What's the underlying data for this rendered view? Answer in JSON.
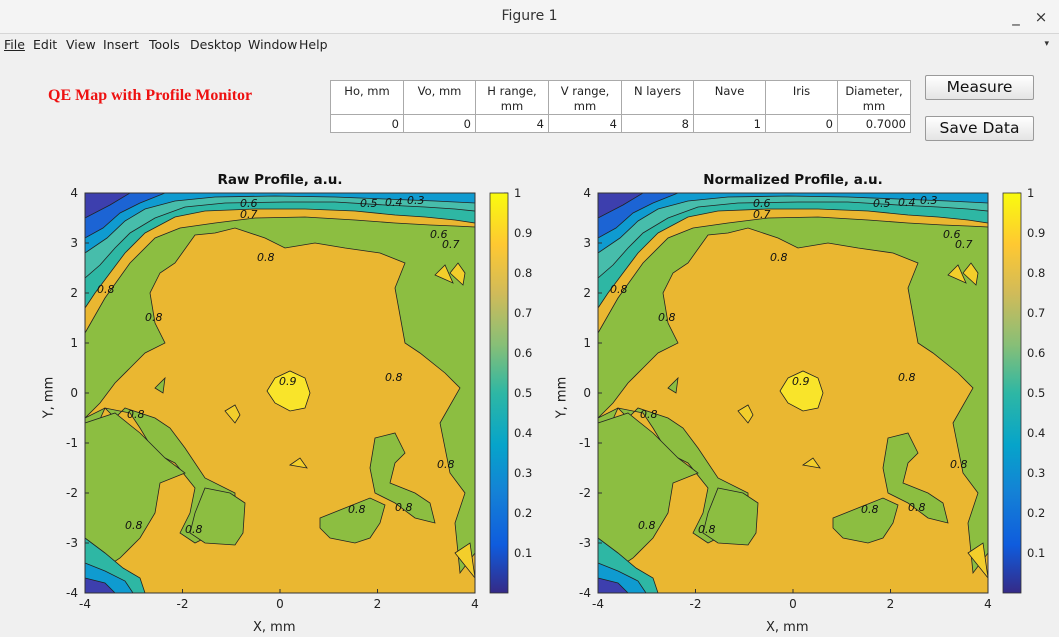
{
  "window": {
    "title": "Figure 1",
    "minimize_glyph": "_",
    "close_glyph": "×"
  },
  "menu": [
    {
      "label": "File",
      "icon": "none"
    },
    {
      "label": "Edit"
    },
    {
      "label": "View"
    },
    {
      "label": "Insert"
    },
    {
      "label": "Tools"
    },
    {
      "label": "Desktop"
    },
    {
      "label": "Window"
    },
    {
      "label": "Help"
    }
  ],
  "app_title": "QE Map with Profile Monitor",
  "app_title_color": "#ee1111",
  "params_table": {
    "headers": [
      "Ho, mm",
      "Vo, mm",
      "H range, mm",
      "V range, mm",
      "N layers",
      "Nave",
      "Iris",
      "Diameter, mm"
    ],
    "values": [
      "0",
      "0",
      "4",
      "4",
      "8",
      "1",
      "0",
      "0.7000"
    ]
  },
  "buttons": {
    "measure": "Measure",
    "save": "Save Data"
  },
  "colors": {
    "parula_low": "#3e26a8",
    "parula_mid_green": "#8cbe41",
    "parula_yellow": "#eab731",
    "parula_high": "#f9fb15"
  },
  "chart_data": [
    {
      "type": "contour",
      "title": "Raw Profile, a.u.",
      "xlabel": "X, mm",
      "ylabel": "Y, mm",
      "xlim": [
        -4,
        4
      ],
      "ylim": [
        -4,
        4
      ],
      "xticks": [
        -4,
        -2,
        0,
        2,
        4
      ],
      "yticks": [
        -4,
        -3,
        -2,
        -1,
        0,
        1,
        2,
        3,
        4
      ],
      "colorbar": {
        "range": [
          0,
          1
        ],
        "ticks": [
          0.1,
          0.2,
          0.3,
          0.4,
          0.5,
          0.6,
          0.7,
          0.8,
          0.9,
          1
        ]
      },
      "contour_labels": [
        "0.3",
        "0.4",
        "0.5",
        "0.6",
        "0.7",
        "0.6",
        "0.7",
        "0.8",
        "0.8",
        "0.8",
        "0.9",
        "0.8",
        "0.8",
        "0.8",
        "0.8",
        "0.8",
        "0.8",
        "0.8"
      ]
    },
    {
      "type": "contour",
      "title": "Normalized Profile, a.u.",
      "xlabel": "X, mm",
      "ylabel": "Y, mm",
      "xlim": [
        -4,
        4
      ],
      "ylim": [
        -4,
        4
      ],
      "xticks": [
        -4,
        -2,
        0,
        2,
        4
      ],
      "yticks": [
        -4,
        -3,
        -2,
        -1,
        0,
        1,
        2,
        3,
        4
      ],
      "colorbar": {
        "range": [
          0,
          1
        ],
        "ticks": [
          0.1,
          0.2,
          0.3,
          0.4,
          0.5,
          0.6,
          0.7,
          0.8,
          0.9,
          1
        ]
      },
      "contour_labels": [
        "0.3",
        "0.4",
        "0.5",
        "0.6",
        "0.7",
        "0.6",
        "0.7",
        "0.8",
        "0.8",
        "0.8",
        "0.9",
        "0.8",
        "0.8",
        "0.8",
        "0.8",
        "0.8",
        "0.8",
        "0.8"
      ]
    }
  ]
}
